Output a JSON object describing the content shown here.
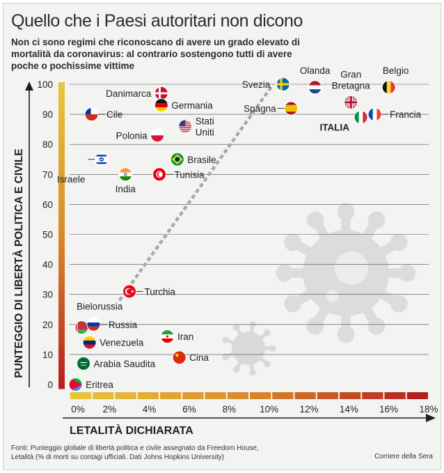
{
  "title": "Quello che i Paesi autoritari non dicono",
  "subtitle": "Non ci sono regimi che riconoscano di avere un grado elevato di mortalità da coronavirus: al contrario sostengono tutti di avere poche o pochissime vittime",
  "source": {
    "line1": "Fonti: Punteggio globale di libertà politica e civile assegnato da Freedom House,",
    "line2": "Letalità (% di morti su contagi ufficiali. Dati  Johns Hopkins University)"
  },
  "credit": "Corriere della Sera",
  "colors": {
    "low": "#e8c43a",
    "mid": "#d88a2a",
    "high": "#b8201f"
  },
  "chart_data": {
    "type": "scatter",
    "xlabel": "LETALITÀ DICHIARATA",
    "ylabel": "PUNTEGGIO DI LIBERTÀ POLITICA E CIVILE",
    "xlim": [
      0,
      18
    ],
    "ylim": [
      0,
      100
    ],
    "x_ticks": [
      "0%",
      "2%",
      "4%",
      "6%",
      "8%",
      "10%",
      "12%",
      "14%",
      "16%",
      "18%"
    ],
    "y_ticks": [
      "0",
      "10",
      "20",
      "30",
      "40",
      "50",
      "60",
      "70",
      "80",
      "90",
      "100"
    ],
    "grid": true,
    "trend_line": {
      "from": [
        2.5,
        28
      ],
      "to": [
        10.2,
        100
      ]
    },
    "points": [
      {
        "name": "Danimarca",
        "x": 4.6,
        "y": 97,
        "flag": "dk"
      },
      {
        "name": "Germania",
        "x": 4.6,
        "y": 93,
        "flag": "de"
      },
      {
        "name": "Cile",
        "x": 1.1,
        "y": 90,
        "flag": "cl"
      },
      {
        "name": "Polonia",
        "x": 4.4,
        "y": 83,
        "flag": "pl"
      },
      {
        "name": "Stati Uniti",
        "x": 5.8,
        "y": 86,
        "flag": "us"
      },
      {
        "name": "Israele",
        "x": 1.6,
        "y": 75,
        "flag": "il"
      },
      {
        "name": "India",
        "x": 2.8,
        "y": 70,
        "flag": "in"
      },
      {
        "name": "Brasile",
        "x": 5.4,
        "y": 75,
        "flag": "br"
      },
      {
        "name": "Tunisia",
        "x": 4.5,
        "y": 70,
        "flag": "tn"
      },
      {
        "name": "Svezia",
        "x": 10.7,
        "y": 100,
        "flag": "se"
      },
      {
        "name": "Olanda",
        "x": 12.3,
        "y": 99,
        "flag": "nl"
      },
      {
        "name": "Gran Bretagna",
        "x": 14.1,
        "y": 94,
        "flag": "gb"
      },
      {
        "name": "Belgio",
        "x": 16.0,
        "y": 99,
        "flag": "be"
      },
      {
        "name": "Spagna",
        "x": 11.1,
        "y": 92,
        "flag": "es"
      },
      {
        "name": "ITALIA",
        "x": 14.6,
        "y": 89,
        "flag": "it"
      },
      {
        "name": "Francia",
        "x": 15.3,
        "y": 90,
        "flag": "fr"
      },
      {
        "name": "Turchia",
        "x": 3.0,
        "y": 31,
        "flag": "tr"
      },
      {
        "name": "Bielorussia",
        "x": 0.6,
        "y": 19,
        "flag": "by"
      },
      {
        "name": "Russia",
        "x": 1.2,
        "y": 20,
        "flag": "ru"
      },
      {
        "name": "Venezuela",
        "x": 1.0,
        "y": 14,
        "flag": "ve"
      },
      {
        "name": "Iran",
        "x": 4.9,
        "y": 16,
        "flag": "ir"
      },
      {
        "name": "Arabia Saudita",
        "x": 0.7,
        "y": 7,
        "flag": "sa"
      },
      {
        "name": "Cina",
        "x": 5.5,
        "y": 9,
        "flag": "cn"
      },
      {
        "name": "Eritrea",
        "x": 0.3,
        "y": 0,
        "flag": "er"
      }
    ]
  }
}
